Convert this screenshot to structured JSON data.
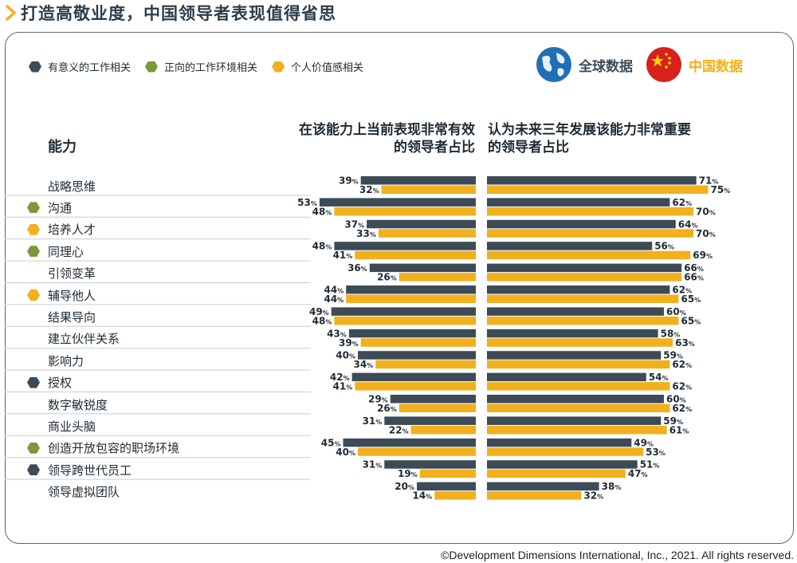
{
  "title": "打造高敬业度，中国领导者表现值得省思",
  "legend": [
    {
      "label": "有意义的工作相关",
      "color": "#3d4b57"
    },
    {
      "label": "正向的工作环境相关",
      "color": "#7a9a3a"
    },
    {
      "label": "个人价值感相关",
      "color": "#f2b01e"
    }
  ],
  "badges": {
    "global": "全球数据",
    "china": "中国数据"
  },
  "colors": {
    "global": "#3d4b57",
    "china": "#f2b01e",
    "global_text": "#3d4b57",
    "china_text": "#f2b01e"
  },
  "headers": {
    "capability": "能力",
    "left_line1": "在该能力上当前表现非常有效",
    "left_line2": "的领导者占比",
    "right_line1": "认为未来三年发展该能力非常重要",
    "right_line2": "的领导者占比"
  },
  "footer": "©Development Dimensions International, Inc., 2021. All rights reserved.",
  "chart_data": {
    "type": "bar",
    "unit": "%",
    "series": [
      {
        "name": "全球数据",
        "color": "#3d4b57"
      },
      {
        "name": "中国数据",
        "color": "#f2b01e"
      }
    ],
    "categories": [
      {
        "label": "战略思维",
        "marker": null,
        "current": [
          39,
          32
        ],
        "future": [
          71,
          75
        ]
      },
      {
        "label": "沟通",
        "marker": "#7a9a3a",
        "current": [
          53,
          48
        ],
        "future": [
          62,
          70
        ]
      },
      {
        "label": "培养人才",
        "marker": "#f2b01e",
        "current": [
          37,
          33
        ],
        "future": [
          64,
          70
        ]
      },
      {
        "label": "同理心",
        "marker": "#7a9a3a",
        "current": [
          48,
          41
        ],
        "future": [
          56,
          69
        ]
      },
      {
        "label": "引领变革",
        "marker": null,
        "current": [
          36,
          26
        ],
        "future": [
          66,
          66
        ]
      },
      {
        "label": "辅导他人",
        "marker": "#f2b01e",
        "current": [
          44,
          44
        ],
        "future": [
          62,
          65
        ]
      },
      {
        "label": "结果导向",
        "marker": null,
        "current": [
          49,
          48
        ],
        "future": [
          60,
          65
        ]
      },
      {
        "label": "建立伙伴关系",
        "marker": null,
        "current": [
          43,
          39
        ],
        "future": [
          58,
          63
        ]
      },
      {
        "label": "影响力",
        "marker": null,
        "current": [
          40,
          34
        ],
        "future": [
          59,
          62
        ]
      },
      {
        "label": "授权",
        "marker": "#3d4b57",
        "current": [
          42,
          41
        ],
        "future": [
          54,
          62
        ]
      },
      {
        "label": "数字敏锐度",
        "marker": null,
        "current": [
          29,
          26
        ],
        "future": [
          60,
          62
        ]
      },
      {
        "label": "商业头脑",
        "marker": null,
        "current": [
          31,
          22
        ],
        "future": [
          59,
          61
        ]
      },
      {
        "label": "创造开放包容的职场环境",
        "marker": "#7a9a3a",
        "current": [
          45,
          40
        ],
        "future": [
          49,
          53
        ]
      },
      {
        "label": "领导跨世代员工",
        "marker": "#3d4b57",
        "current": [
          31,
          19
        ],
        "future": [
          51,
          47
        ]
      },
      {
        "label": "领导虚拟团队",
        "marker": null,
        "current": [
          20,
          14
        ],
        "future": [
          38,
          32
        ]
      }
    ]
  }
}
